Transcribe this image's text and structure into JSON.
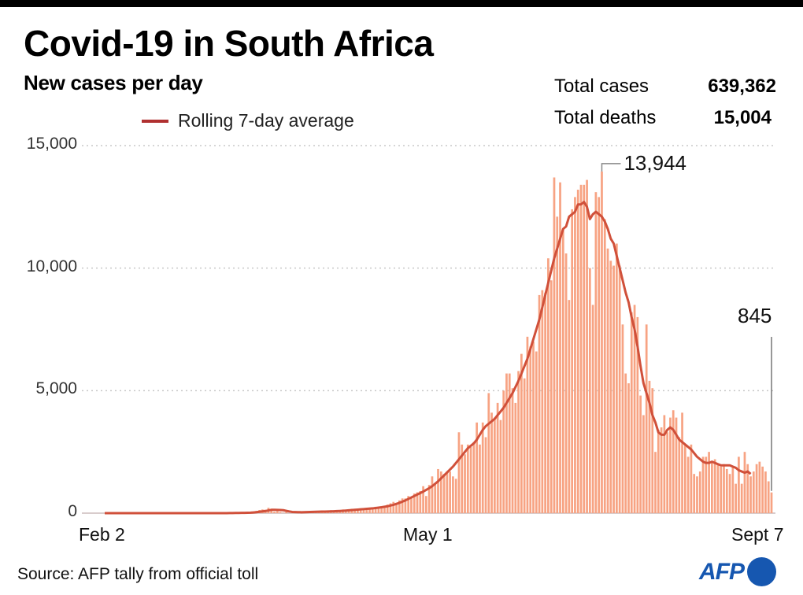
{
  "header": {
    "title": "Covid-19 in South Africa",
    "subtitle": "New cases per day"
  },
  "legend": {
    "line_label": "Rolling 7-day average"
  },
  "totals": [
    {
      "label": "Total cases",
      "value": "639,362"
    },
    {
      "label": "Total deaths",
      "value": "15,004"
    }
  ],
  "footer": {
    "source": "Source: AFP tally from official toll",
    "logo": "AFP"
  },
  "colors": {
    "bar": "#f7a383",
    "line": "#d0503a",
    "legend_line": "#b03030",
    "logo": "#1657b0"
  },
  "chart_data": {
    "type": "bar",
    "title": "Covid-19 in South Africa",
    "subtitle": "New cases per day",
    "xlabel": "",
    "ylabel": "",
    "ylim": [
      0,
      15000
    ],
    "yticks": [
      0,
      5000,
      10000,
      15000
    ],
    "ytick_labels": [
      "0",
      "5,000",
      "10,000",
      "15,000"
    ],
    "xtick_labels": [
      "Feb 2",
      "May 1",
      "Sept 7"
    ],
    "x_start": "Feb 2",
    "x_end": "Sept 7",
    "grid": true,
    "legend_position": "top-left",
    "annotations": [
      {
        "label": "13,944",
        "value": 13944,
        "note": "peak daily cases"
      },
      {
        "label": "845",
        "value": 845,
        "note": "latest daily cases (Sept 7)"
      }
    ],
    "series": [
      {
        "name": "New cases per day",
        "kind": "bar",
        "values": [
          0,
          0,
          0,
          0,
          0,
          0,
          0,
          0,
          0,
          0,
          0,
          0,
          0,
          0,
          0,
          0,
          0,
          0,
          0,
          0,
          0,
          0,
          0,
          0,
          0,
          0,
          0,
          0,
          0,
          0,
          0,
          0,
          0,
          0,
          0,
          1,
          0,
          2,
          0,
          4,
          6,
          3,
          7,
          13,
          13,
          10,
          24,
          24,
          38,
          54,
          66,
          94,
          128,
          150,
          138,
          218,
          180,
          60,
          80,
          44,
          17,
          46,
          0,
          20,
          37,
          56,
          68,
          50,
          40,
          60,
          70,
          80,
          30,
          90,
          65,
          50,
          120,
          80,
          100,
          70,
          150,
          120,
          130,
          180,
          140,
          160,
          170,
          190,
          160,
          230,
          200,
          260,
          240,
          280,
          300,
          350,
          400,
          460,
          420,
          520,
          600,
          600,
          700,
          650,
          800,
          850,
          900,
          1100,
          700,
          1150,
          1500,
          1200,
          1800,
          1700,
          1600,
          1700,
          1700,
          1500,
          1400,
          3300,
          2800,
          2400,
          2800,
          2700,
          2900,
          3700,
          2800,
          3700,
          3100,
          4900,
          4100,
          3900,
          4500,
          3800,
          5000,
          5700,
          5700,
          5100,
          4500,
          5800,
          6500,
          5500,
          7200,
          6800,
          7000,
          6600,
          8900,
          9100,
          9000,
          10400,
          9500,
          13700,
          12100,
          13500,
          11600,
          10600,
          8700,
          12400,
          12900,
          13200,
          13400,
          13400,
          13600,
          10000,
          8500,
          13100,
          12900,
          13944,
          12000,
          10800,
          10300,
          10100,
          11000,
          10100,
          7700,
          5700,
          5300,
          8200,
          8500,
          8000,
          4800,
          4000,
          7700,
          5400,
          5100,
          2500,
          3400,
          3500,
          4000,
          3300,
          3900,
          4200,
          3900,
          3100,
          4100,
          2800,
          2300,
          2800,
          1600,
          1500,
          1700,
          2300,
          2300,
          2500,
          2100,
          2200,
          2000,
          1900,
          2000,
          1800,
          1600,
          1900,
          1200,
          2300,
          1200,
          2500,
          2000,
          1500,
          1700,
          2000,
          2100,
          1900,
          1700,
          1300,
          845
        ]
      },
      {
        "name": "Rolling 7-day average",
        "kind": "line",
        "values": [
          0,
          0,
          0,
          0,
          0,
          0,
          0,
          0,
          0,
          0,
          0,
          0,
          0,
          0,
          0,
          0,
          0,
          0,
          0,
          0,
          0,
          0,
          0,
          0,
          0,
          0,
          0,
          0,
          0,
          0,
          0,
          0,
          0,
          0,
          0,
          0,
          0,
          1,
          1,
          1,
          2,
          2,
          3,
          5,
          7,
          8,
          11,
          13,
          17,
          22,
          30,
          40,
          55,
          72,
          87,
          110,
          135,
          135,
          133,
          130,
          120,
          95,
          70,
          50,
          45,
          40,
          38,
          40,
          45,
          48,
          52,
          55,
          60,
          63,
          65,
          68,
          72,
          78,
          85,
          90,
          95,
          105,
          115,
          125,
          135,
          145,
          155,
          165,
          175,
          185,
          195,
          210,
          225,
          240,
          260,
          280,
          310,
          340,
          380,
          420,
          470,
          520,
          580,
          640,
          700,
          760,
          820,
          880,
          950,
          1020,
          1100,
          1200,
          1300,
          1420,
          1540,
          1660,
          1780,
          1900,
          2050,
          2200,
          2350,
          2500,
          2650,
          2750,
          2850,
          3000,
          3200,
          3400,
          3550,
          3650,
          3750,
          3850,
          4000,
          4150,
          4300,
          4500,
          4700,
          4900,
          5150,
          5400,
          5700,
          6000,
          6300,
          6700,
          7100,
          7500,
          7900,
          8400,
          8900,
          9400,
          9900,
          10400,
          10800,
          11200,
          11600,
          11700,
          12100,
          12200,
          12300,
          12600,
          12600,
          12700,
          12500,
          12000,
          12200,
          12300,
          12200,
          12100,
          11900,
          11600,
          11200,
          11000,
          10500,
          10000,
          9500,
          9000,
          8600,
          8000,
          7500,
          6800,
          6000,
          5300,
          4900,
          4500,
          4000,
          3700,
          3300,
          3200,
          3200,
          3400,
          3500,
          3400,
          3200,
          3000,
          2900,
          2800,
          2700,
          2600,
          2450,
          2300,
          2200,
          2100,
          2050,
          2050,
          2100,
          2050,
          2000,
          1950,
          1950,
          1950,
          1950,
          1900,
          1850,
          1750,
          1700,
          1650,
          1700,
          1600
        ]
      }
    ]
  }
}
